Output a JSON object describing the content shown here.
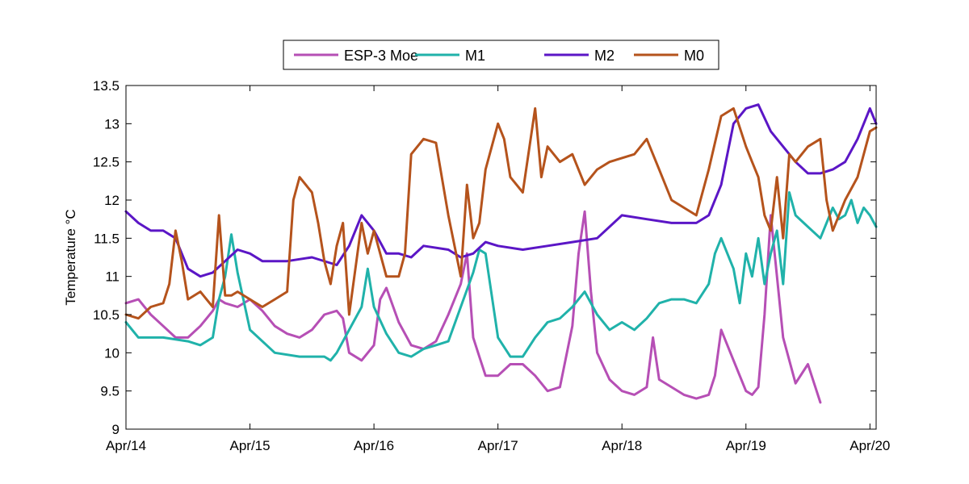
{
  "chart_data": {
    "type": "line",
    "title": "",
    "xlabel": "",
    "ylabel": "Temperature °C",
    "x_tick_labels": [
      "Apr/14",
      "Apr/15",
      "Apr/16",
      "Apr/17",
      "Apr/18",
      "Apr/19",
      "Apr/20"
    ],
    "xlim": [
      14,
      20.05
    ],
    "ylim": [
      9,
      13.5
    ],
    "y_ticks": [
      9,
      9.5,
      10,
      10.5,
      11,
      11.5,
      12,
      12.5,
      13,
      13.5
    ],
    "grid": false,
    "legend_position": "top-center, outside plot",
    "x_unit": "day of April",
    "series": [
      {
        "name": "ESP-3 Moe",
        "color": "#b64fb5",
        "x": [
          14.0,
          14.1,
          14.2,
          14.3,
          14.4,
          14.5,
          14.6,
          14.7,
          14.75,
          14.8,
          14.9,
          15.0,
          15.1,
          15.2,
          15.3,
          15.4,
          15.5,
          15.6,
          15.7,
          15.75,
          15.8,
          15.9,
          16.0,
          16.05,
          16.1,
          16.2,
          16.3,
          16.4,
          16.5,
          16.6,
          16.7,
          16.75,
          16.8,
          16.85,
          16.9,
          17.0,
          17.1,
          17.2,
          17.3,
          17.4,
          17.5,
          17.6,
          17.65,
          17.7,
          17.75,
          17.8,
          17.9,
          18.0,
          18.1,
          18.2,
          18.25,
          18.3,
          18.4,
          18.5,
          18.6,
          18.7,
          18.75,
          18.8,
          18.9,
          19.0,
          19.05,
          19.1,
          19.15,
          19.2,
          19.25,
          19.3,
          19.4,
          19.5,
          19.55,
          19.6
        ],
        "y": [
          10.65,
          10.7,
          10.5,
          10.35,
          10.2,
          10.2,
          10.35,
          10.55,
          10.7,
          10.65,
          10.6,
          10.7,
          10.55,
          10.35,
          10.25,
          10.2,
          10.3,
          10.5,
          10.55,
          10.45,
          10.0,
          9.9,
          10.1,
          10.7,
          10.85,
          10.4,
          10.1,
          10.05,
          10.15,
          10.5,
          10.9,
          11.3,
          10.2,
          9.95,
          9.7,
          9.7,
          9.85,
          9.85,
          9.7,
          9.5,
          9.55,
          10.35,
          11.3,
          11.85,
          10.8,
          10.0,
          9.65,
          9.5,
          9.45,
          9.55,
          10.2,
          9.65,
          9.55,
          9.45,
          9.4,
          9.45,
          9.7,
          10.3,
          9.9,
          9.5,
          9.45,
          9.55,
          10.5,
          11.8,
          11.0,
          10.2,
          9.6,
          9.85,
          9.6,
          9.35
        ]
      },
      {
        "name": "M1",
        "color": "#20b2aa",
        "x": [
          14.0,
          14.1,
          14.3,
          14.5,
          14.6,
          14.7,
          14.75,
          14.8,
          14.85,
          14.9,
          15.0,
          15.2,
          15.4,
          15.6,
          15.65,
          15.7,
          15.8,
          15.9,
          15.95,
          16.0,
          16.1,
          16.2,
          16.3,
          16.4,
          16.5,
          16.6,
          16.7,
          16.8,
          16.85,
          16.9,
          17.0,
          17.1,
          17.2,
          17.3,
          17.4,
          17.5,
          17.6,
          17.7,
          17.8,
          17.9,
          18.0,
          18.1,
          18.2,
          18.3,
          18.4,
          18.5,
          18.6,
          18.7,
          18.75,
          18.8,
          18.9,
          18.95,
          19.0,
          19.05,
          19.1,
          19.15,
          19.2,
          19.25,
          19.3,
          19.35,
          19.4,
          19.5,
          19.6,
          19.7,
          19.75,
          19.8,
          19.85,
          19.9,
          19.95,
          20.0,
          20.05
        ],
        "y": [
          10.4,
          10.2,
          10.2,
          10.15,
          10.1,
          10.2,
          10.7,
          11.0,
          11.55,
          11.05,
          10.3,
          10.0,
          9.95,
          9.95,
          9.9,
          10.0,
          10.3,
          10.6,
          11.1,
          10.6,
          10.25,
          10.0,
          9.95,
          10.05,
          10.1,
          10.15,
          10.6,
          11.05,
          11.35,
          11.3,
          10.2,
          9.95,
          9.95,
          10.2,
          10.4,
          10.45,
          10.6,
          10.8,
          10.5,
          10.3,
          10.4,
          10.3,
          10.45,
          10.65,
          10.7,
          10.7,
          10.65,
          10.9,
          11.3,
          11.5,
          11.1,
          10.65,
          11.3,
          11.0,
          11.5,
          10.9,
          11.3,
          11.6,
          10.9,
          12.1,
          11.8,
          11.65,
          11.5,
          11.9,
          11.75,
          11.8,
          12.0,
          11.7,
          11.9,
          11.8,
          11.65
        ]
      },
      {
        "name": "M2",
        "color": "#5b16c6",
        "x": [
          14.0,
          14.1,
          14.2,
          14.3,
          14.4,
          14.5,
          14.6,
          14.7,
          14.8,
          14.9,
          15.0,
          15.1,
          15.3,
          15.5,
          15.7,
          15.8,
          15.9,
          16.0,
          16.1,
          16.2,
          16.3,
          16.4,
          16.6,
          16.7,
          16.8,
          16.9,
          17.0,
          17.2,
          17.4,
          17.6,
          17.8,
          18.0,
          18.2,
          18.4,
          18.6,
          18.7,
          18.8,
          18.9,
          19.0,
          19.1,
          19.2,
          19.3,
          19.4,
          19.5,
          19.6,
          19.7,
          19.8,
          19.9,
          20.0,
          20.05
        ],
        "y": [
          11.85,
          11.7,
          11.6,
          11.6,
          11.5,
          11.1,
          11.0,
          11.05,
          11.2,
          11.35,
          11.3,
          11.2,
          11.2,
          11.25,
          11.15,
          11.4,
          11.8,
          11.6,
          11.3,
          11.3,
          11.25,
          11.4,
          11.35,
          11.25,
          11.3,
          11.45,
          11.4,
          11.35,
          11.4,
          11.45,
          11.5,
          11.8,
          11.75,
          11.7,
          11.7,
          11.8,
          12.2,
          13.0,
          13.2,
          13.25,
          12.9,
          12.7,
          12.5,
          12.35,
          12.35,
          12.4,
          12.5,
          12.8,
          13.2,
          13.0
        ]
      },
      {
        "name": "M0",
        "color": "#b5531c",
        "x": [
          14.0,
          14.1,
          14.2,
          14.3,
          14.35,
          14.4,
          14.45,
          14.5,
          14.6,
          14.7,
          14.75,
          14.8,
          14.85,
          14.9,
          15.0,
          15.1,
          15.2,
          15.3,
          15.35,
          15.4,
          15.5,
          15.55,
          15.6,
          15.65,
          15.7,
          15.75,
          15.8,
          15.9,
          15.95,
          16.0,
          16.1,
          16.2,
          16.25,
          16.3,
          16.4,
          16.5,
          16.6,
          16.7,
          16.75,
          16.8,
          16.85,
          16.9,
          17.0,
          17.05,
          17.1,
          17.2,
          17.3,
          17.35,
          17.4,
          17.5,
          17.6,
          17.7,
          17.8,
          17.9,
          18.0,
          18.1,
          18.2,
          18.3,
          18.4,
          18.5,
          18.6,
          18.7,
          18.8,
          18.9,
          19.0,
          19.05,
          19.1,
          19.15,
          19.2,
          19.25,
          19.3,
          19.35,
          19.4,
          19.5,
          19.6,
          19.65,
          19.7,
          19.8,
          19.9,
          20.0,
          20.05
        ],
        "y": [
          10.5,
          10.45,
          10.6,
          10.65,
          10.9,
          11.6,
          11.2,
          10.7,
          10.8,
          10.6,
          11.8,
          10.75,
          10.75,
          10.8,
          10.7,
          10.6,
          10.7,
          10.8,
          12.0,
          12.3,
          12.1,
          11.7,
          11.2,
          10.9,
          11.4,
          11.7,
          10.5,
          11.7,
          11.3,
          11.6,
          11.0,
          11.0,
          11.3,
          12.6,
          12.8,
          12.75,
          11.8,
          11.0,
          12.2,
          11.5,
          11.7,
          12.4,
          13.0,
          12.8,
          12.3,
          12.1,
          13.2,
          12.3,
          12.7,
          12.5,
          12.6,
          12.2,
          12.4,
          12.5,
          12.55,
          12.6,
          12.8,
          12.4,
          12.0,
          11.9,
          11.8,
          12.4,
          13.1,
          13.2,
          12.7,
          12.5,
          12.3,
          11.8,
          11.6,
          12.3,
          11.5,
          12.6,
          12.5,
          12.7,
          12.8,
          12.0,
          11.6,
          12.0,
          12.3,
          12.9,
          12.95
        ]
      }
    ]
  }
}
